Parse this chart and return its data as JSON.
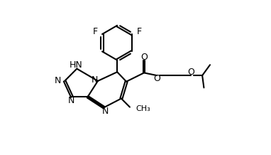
{
  "background": "#ffffff",
  "line_color": "#000000",
  "line_width": 1.5,
  "font_size": 9,
  "fig_width": 3.82,
  "fig_height": 2.18,
  "dpi": 100,
  "xlim": [
    -0.5,
    8.5
  ],
  "ylim": [
    -0.3,
    7.2
  ]
}
